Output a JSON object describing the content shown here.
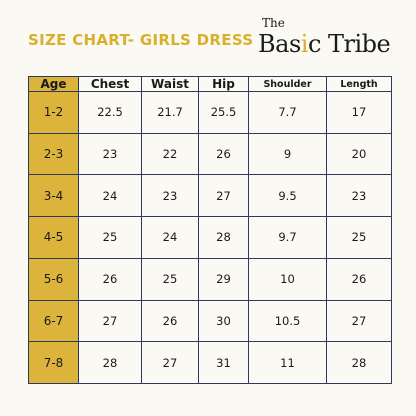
{
  "title": "SIZE CHART- GIRLS DRESS",
  "logo": {
    "top": "The",
    "brand_part1": "Bas",
    "brand_accent": "i",
    "brand_part2": "c Tribe"
  },
  "table": {
    "headers": [
      "Age",
      "Chest",
      "Waist",
      "Hip",
      "Shoulder",
      "Length"
    ],
    "rows": [
      [
        "1-2",
        "22.5",
        "21.7",
        "25.5",
        "7.7",
        "17"
      ],
      [
        "2-3",
        "23",
        "22",
        "26",
        "9",
        "20"
      ],
      [
        "3-4",
        "24",
        "23",
        "27",
        "9.5",
        "23"
      ],
      [
        "4-5",
        "25",
        "24",
        "28",
        "9.7",
        "25"
      ],
      [
        "5-6",
        "26",
        "25",
        "29",
        "10",
        "26"
      ],
      [
        "6-7",
        "27",
        "26",
        "30",
        "10.5",
        "27"
      ],
      [
        "7-8",
        "28",
        "27",
        "31",
        "11",
        "28"
      ]
    ]
  },
  "colors": {
    "accent": "#dcb43c",
    "grid": "#2e3a5c",
    "background": "#fbf9f4"
  }
}
